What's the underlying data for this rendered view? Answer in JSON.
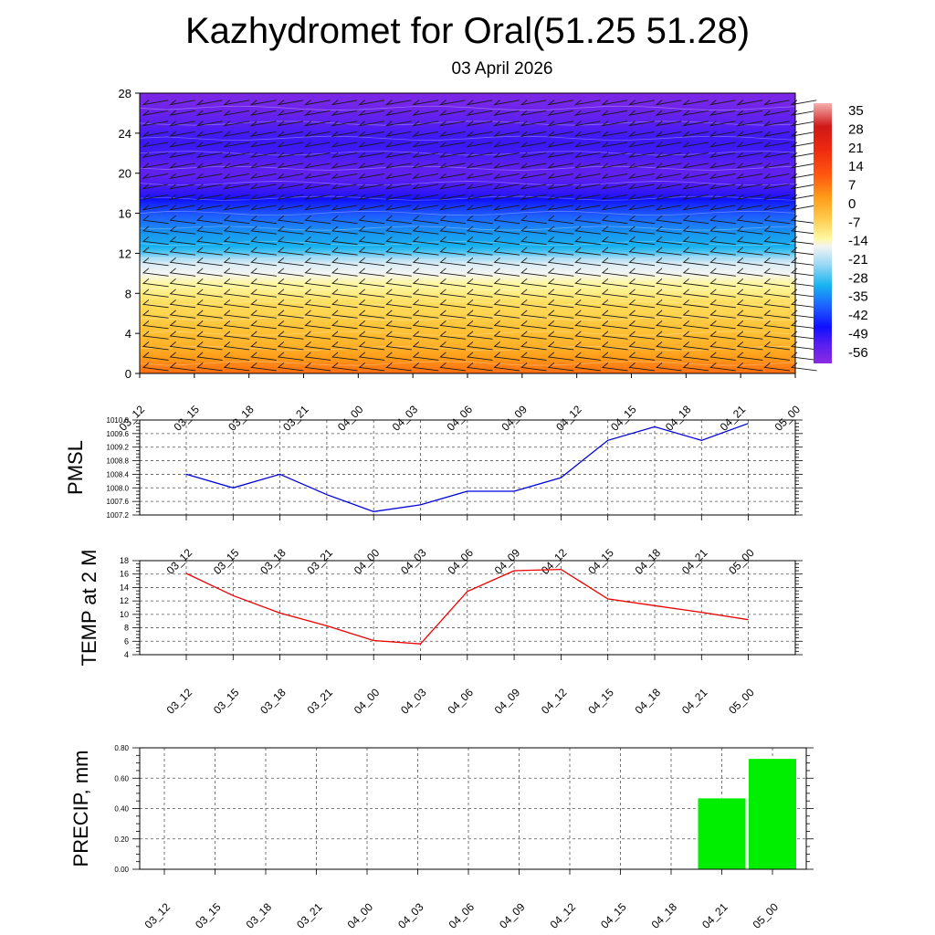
{
  "title": "Kazhydromet for Oral(51.25 51.28)",
  "subtitle": "03 April 2026",
  "time_labels": [
    "03_12",
    "03_15",
    "03_18",
    "03_21",
    "04_00",
    "04_03",
    "04_06",
    "04_09",
    "04_12",
    "04_15",
    "04_18",
    "04_21",
    "05_00"
  ],
  "colors": {
    "pmsl_line": "#0000dd",
    "temp_line": "#ee0000",
    "precip_bar": "#00ee00",
    "grid": "#555555"
  },
  "chart_data": [
    {
      "type": "heatmap",
      "name": "cross-section",
      "x": [
        "03_12",
        "03_15",
        "03_18",
        "03_21",
        "04_00",
        "04_03",
        "04_06",
        "04_09",
        "04_12",
        "04_15",
        "04_18",
        "04_21",
        "05_00"
      ],
      "y_ticks": [
        0,
        4,
        8,
        12,
        16,
        20,
        24,
        28
      ],
      "ylim": [
        0,
        28
      ],
      "colorbar_labels": [
        "35",
        "28",
        "21",
        "14",
        "7",
        "0",
        "-7",
        "-14",
        "-21",
        "-28",
        "-35",
        "-42",
        "-49",
        "-56"
      ],
      "colorbar_range": [
        -63,
        42
      ],
      "profile": [
        [
          0,
          12
        ],
        [
          1,
          9
        ],
        [
          2,
          5
        ],
        [
          3,
          2
        ],
        [
          4,
          0
        ],
        [
          5,
          -2
        ],
        [
          6,
          -5
        ],
        [
          7,
          -7
        ],
        [
          8,
          -10
        ],
        [
          9,
          -12
        ],
        [
          10,
          -14
        ],
        [
          11,
          -16
        ],
        [
          12,
          -24
        ],
        [
          13,
          -30
        ],
        [
          14,
          -35
        ],
        [
          15,
          -39
        ],
        [
          16,
          -43
        ],
        [
          17,
          -47
        ],
        [
          18,
          -52
        ],
        [
          19,
          -55
        ],
        [
          20,
          -57
        ],
        [
          21,
          -56
        ],
        [
          22,
          -54
        ],
        [
          23,
          -53
        ],
        [
          24,
          -54
        ],
        [
          25,
          -56
        ],
        [
          26,
          -58
        ],
        [
          27,
          -60
        ],
        [
          28,
          -61
        ]
      ],
      "grid": false
    },
    {
      "type": "line",
      "ylabel": "PMSL",
      "categories": [
        "03_12",
        "03_15",
        "03_18",
        "03_21",
        "04_00",
        "04_03",
        "04_06",
        "04_09",
        "04_12",
        "04_15",
        "04_18",
        "04_21",
        "05_00"
      ],
      "series": [
        {
          "values": [
            1008.4,
            1008.0,
            1008.4,
            1007.8,
            1007.3,
            1007.5,
            1007.9,
            1007.9,
            1008.3,
            1009.4,
            1009.8,
            1009.4,
            1009.9
          ]
        }
      ],
      "ylim": [
        1007.2,
        1010.0
      ],
      "yticks": [
        "1007.2",
        "1007.6",
        "1008.0",
        "1008.4",
        "1008.8",
        "1009.2",
        "1009.6",
        "1010.0"
      ],
      "grid": true
    },
    {
      "type": "line",
      "ylabel": "TEMP at 2 M",
      "categories": [
        "03_12",
        "03_15",
        "03_18",
        "03_21",
        "04_00",
        "04_03",
        "04_06",
        "04_09",
        "04_12",
        "04_15",
        "04_18",
        "04_21",
        "05_00"
      ],
      "series": [
        {
          "values": [
            16.1,
            12.8,
            10.2,
            8.3,
            6.1,
            5.6,
            13.4,
            16.5,
            16.7,
            12.3,
            11.3,
            10.3,
            9.2
          ]
        }
      ],
      "ylim": [
        4,
        18
      ],
      "yticks": [
        "4",
        "6",
        "8",
        "10",
        "12",
        "14",
        "16",
        "18"
      ],
      "grid": true
    },
    {
      "type": "bar",
      "ylabel": "PRECIP, mm",
      "categories": [
        "03_12",
        "03_15",
        "03_18",
        "03_21",
        "04_00",
        "04_03",
        "04_06",
        "04_09",
        "04_12",
        "04_15",
        "04_18",
        "04_21",
        "05_00"
      ],
      "values": [
        0,
        0,
        0,
        0,
        0,
        0,
        0,
        0,
        0,
        0,
        0,
        0.47,
        0.73
      ],
      "ylim": [
        0,
        0.8
      ],
      "yticks": [
        "0.00",
        "0.20",
        "0.40",
        "0.60",
        "0.80"
      ],
      "grid": true
    }
  ]
}
